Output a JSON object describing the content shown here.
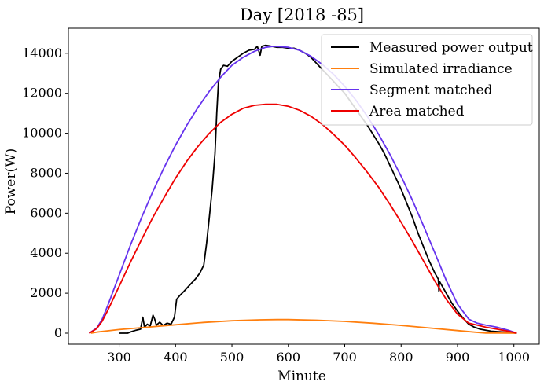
{
  "chart_data": {
    "type": "line",
    "title": "Day [2018 -85]",
    "xlabel": "Minute",
    "ylabel": "Power(W)",
    "xlim": [
      210,
      1045
    ],
    "ylim": [
      -550,
      15250
    ],
    "xticks": [
      300,
      400,
      500,
      600,
      700,
      800,
      900,
      1000
    ],
    "yticks": [
      0,
      2000,
      4000,
      6000,
      8000,
      10000,
      12000,
      14000
    ],
    "grid": false,
    "legend": {
      "placement": "top-right"
    },
    "series": [
      {
        "name": "Measured power output",
        "color": "#000000",
        "points": [
          [
            300,
            0
          ],
          [
            315,
            0
          ],
          [
            320,
            60
          ],
          [
            330,
            150
          ],
          [
            338,
            200
          ],
          [
            342,
            800
          ],
          [
            345,
            300
          ],
          [
            350,
            450
          ],
          [
            355,
            350
          ],
          [
            360,
            900
          ],
          [
            363,
            700
          ],
          [
            366,
            400
          ],
          [
            372,
            550
          ],
          [
            378,
            380
          ],
          [
            385,
            500
          ],
          [
            392,
            450
          ],
          [
            398,
            800
          ],
          [
            402,
            1700
          ],
          [
            408,
            1900
          ],
          [
            415,
            2100
          ],
          [
            425,
            2400
          ],
          [
            435,
            2700
          ],
          [
            443,
            3000
          ],
          [
            450,
            3400
          ],
          [
            455,
            4500
          ],
          [
            460,
            5800
          ],
          [
            465,
            7200
          ],
          [
            470,
            9000
          ],
          [
            473,
            11000
          ],
          [
            476,
            12500
          ],
          [
            480,
            13200
          ],
          [
            485,
            13400
          ],
          [
            492,
            13350
          ],
          [
            500,
            13600
          ],
          [
            510,
            13800
          ],
          [
            520,
            14000
          ],
          [
            530,
            14150
          ],
          [
            540,
            14200
          ],
          [
            545,
            14350
          ],
          [
            550,
            13900
          ],
          [
            553,
            14350
          ],
          [
            560,
            14400
          ],
          [
            570,
            14350
          ],
          [
            580,
            14300
          ],
          [
            590,
            14300
          ],
          [
            600,
            14250
          ],
          [
            610,
            14250
          ],
          [
            620,
            14150
          ],
          [
            630,
            14000
          ],
          [
            640,
            13800
          ],
          [
            650,
            13500
          ],
          [
            660,
            13200
          ],
          [
            670,
            12900
          ],
          [
            680,
            12600
          ],
          [
            690,
            12300
          ],
          [
            700,
            12000
          ],
          [
            710,
            11600
          ],
          [
            720,
            11200
          ],
          [
            730,
            10800
          ],
          [
            740,
            10400
          ],
          [
            750,
            9950
          ],
          [
            760,
            9500
          ],
          [
            770,
            9000
          ],
          [
            780,
            8400
          ],
          [
            790,
            7800
          ],
          [
            800,
            7200
          ],
          [
            810,
            6500
          ],
          [
            820,
            5800
          ],
          [
            830,
            5000
          ],
          [
            840,
            4300
          ],
          [
            850,
            3600
          ],
          [
            860,
            3000
          ],
          [
            866,
            2700
          ],
          [
            867,
            2100
          ],
          [
            868,
            2600
          ],
          [
            880,
            2000
          ],
          [
            890,
            1500
          ],
          [
            900,
            1100
          ],
          [
            910,
            750
          ],
          [
            920,
            450
          ],
          [
            930,
            300
          ],
          [
            940,
            200
          ],
          [
            950,
            150
          ],
          [
            960,
            100
          ],
          [
            980,
            60
          ],
          [
            1005,
            0
          ]
        ]
      },
      {
        "name": "Simulated irradiance",
        "color": "#ff7f0e",
        "points": [
          [
            250,
            0
          ],
          [
            260,
            50
          ],
          [
            280,
            120
          ],
          [
            300,
            180
          ],
          [
            350,
            300
          ],
          [
            400,
            420
          ],
          [
            450,
            540
          ],
          [
            500,
            620
          ],
          [
            550,
            670
          ],
          [
            580,
            680
          ],
          [
            600,
            680
          ],
          [
            650,
            650
          ],
          [
            700,
            590
          ],
          [
            750,
            500
          ],
          [
            800,
            390
          ],
          [
            850,
            260
          ],
          [
            900,
            130
          ],
          [
            930,
            50
          ],
          [
            950,
            10
          ],
          [
            1005,
            0
          ]
        ]
      },
      {
        "name": "Segment matched",
        "color": "#6633ee",
        "points": [
          [
            247,
            0
          ],
          [
            260,
            250
          ],
          [
            270,
            700
          ],
          [
            280,
            1400
          ],
          [
            300,
            2900
          ],
          [
            320,
            4400
          ],
          [
            340,
            5800
          ],
          [
            360,
            7100
          ],
          [
            380,
            8300
          ],
          [
            400,
            9400
          ],
          [
            420,
            10400
          ],
          [
            440,
            11300
          ],
          [
            460,
            12100
          ],
          [
            480,
            12800
          ],
          [
            500,
            13400
          ],
          [
            520,
            13800
          ],
          [
            540,
            14100
          ],
          [
            560,
            14300
          ],
          [
            575,
            14350
          ],
          [
            600,
            14300
          ],
          [
            620,
            14150
          ],
          [
            640,
            13850
          ],
          [
            660,
            13450
          ],
          [
            680,
            12950
          ],
          [
            700,
            12350
          ],
          [
            720,
            11650
          ],
          [
            740,
            10850
          ],
          [
            760,
            9950
          ],
          [
            780,
            8950
          ],
          [
            800,
            7850
          ],
          [
            820,
            6650
          ],
          [
            840,
            5350
          ],
          [
            860,
            4000
          ],
          [
            880,
            2650
          ],
          [
            900,
            1450
          ],
          [
            920,
            700
          ],
          [
            935,
            500
          ],
          [
            950,
            400
          ],
          [
            970,
            300
          ],
          [
            990,
            150
          ],
          [
            1005,
            0
          ]
        ]
      },
      {
        "name": "Area matched",
        "color": "#ee0000",
        "points": [
          [
            247,
            0
          ],
          [
            260,
            220
          ],
          [
            270,
            600
          ],
          [
            280,
            1150
          ],
          [
            300,
            2350
          ],
          [
            320,
            3550
          ],
          [
            340,
            4700
          ],
          [
            360,
            5800
          ],
          [
            380,
            6800
          ],
          [
            400,
            7750
          ],
          [
            420,
            8600
          ],
          [
            440,
            9350
          ],
          [
            460,
            10000
          ],
          [
            480,
            10550
          ],
          [
            500,
            10950
          ],
          [
            520,
            11250
          ],
          [
            540,
            11400
          ],
          [
            560,
            11450
          ],
          [
            580,
            11450
          ],
          [
            600,
            11350
          ],
          [
            620,
            11150
          ],
          [
            640,
            10850
          ],
          [
            660,
            10450
          ],
          [
            680,
            9950
          ],
          [
            700,
            9400
          ],
          [
            720,
            8750
          ],
          [
            740,
            8050
          ],
          [
            760,
            7300
          ],
          [
            780,
            6450
          ],
          [
            800,
            5550
          ],
          [
            820,
            4600
          ],
          [
            840,
            3600
          ],
          [
            860,
            2600
          ],
          [
            880,
            1700
          ],
          [
            900,
            950
          ],
          [
            920,
            500
          ],
          [
            935,
            400
          ],
          [
            950,
            300
          ],
          [
            970,
            200
          ],
          [
            990,
            100
          ],
          [
            1005,
            0
          ]
        ]
      }
    ]
  }
}
